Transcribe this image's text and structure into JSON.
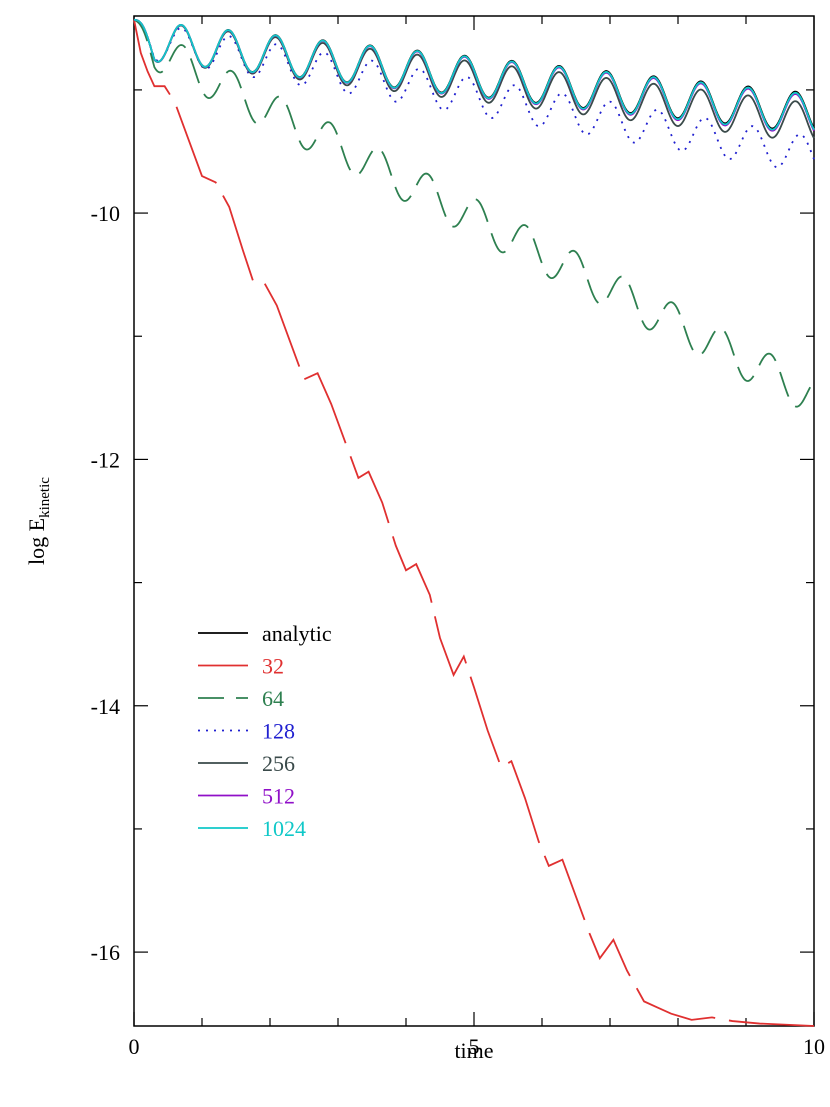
{
  "chart_data": {
    "type": "line",
    "title": "",
    "xlabel": "time",
    "ylabel": "log E",
    "ylabel_sub": "kinetic",
    "xlim": [
      0,
      10
    ],
    "ylim": [
      -16.6,
      -8.4
    ],
    "x_ticks": [
      0,
      5,
      10
    ],
    "y_ticks": [
      -10,
      -12,
      -14,
      -16
    ],
    "grid": false,
    "legend_position": "lower-left",
    "series": [
      {
        "name": "analytic",
        "color": "#000000",
        "dash": "solid",
        "start": -8.43,
        "slope": -0.06,
        "amp": 0.16,
        "period": 0.695
      },
      {
        "name": "32",
        "color": "#e03030",
        "dash": "long-dash",
        "points": [
          [
            0,
            -8.43
          ],
          [
            0.1,
            -8.7
          ],
          [
            0.2,
            -8.85
          ],
          [
            0.3,
            -8.97
          ],
          [
            0.45,
            -8.97
          ],
          [
            0.6,
            -9.1
          ],
          [
            0.8,
            -9.4
          ],
          [
            1.0,
            -9.7
          ],
          [
            1.2,
            -9.75
          ],
          [
            1.4,
            -9.95
          ],
          [
            1.6,
            -10.3
          ],
          [
            1.75,
            -10.55
          ],
          [
            1.9,
            -10.55
          ],
          [
            2.1,
            -10.75
          ],
          [
            2.3,
            -11.05
          ],
          [
            2.5,
            -11.35
          ],
          [
            2.7,
            -11.3
          ],
          [
            2.9,
            -11.55
          ],
          [
            3.1,
            -11.85
          ],
          [
            3.3,
            -12.15
          ],
          [
            3.45,
            -12.1
          ],
          [
            3.65,
            -12.35
          ],
          [
            3.85,
            -12.7
          ],
          [
            4.0,
            -12.9
          ],
          [
            4.15,
            -12.85
          ],
          [
            4.35,
            -13.1
          ],
          [
            4.5,
            -13.45
          ],
          [
            4.7,
            -13.75
          ],
          [
            4.85,
            -13.6
          ],
          [
            5.0,
            -13.85
          ],
          [
            5.2,
            -14.2
          ],
          [
            5.4,
            -14.5
          ],
          [
            5.55,
            -14.45
          ],
          [
            5.75,
            -14.75
          ],
          [
            5.95,
            -15.1
          ],
          [
            6.1,
            -15.3
          ],
          [
            6.3,
            -15.25
          ],
          [
            6.5,
            -15.55
          ],
          [
            6.7,
            -15.85
          ],
          [
            6.85,
            -16.05
          ],
          [
            7.05,
            -15.9
          ],
          [
            7.25,
            -16.15
          ],
          [
            7.5,
            -16.4
          ],
          [
            7.7,
            -16.45
          ],
          [
            7.9,
            -16.5
          ],
          [
            8.2,
            -16.55
          ],
          [
            8.5,
            -16.53
          ],
          [
            8.8,
            -16.56
          ],
          [
            9.2,
            -16.58
          ],
          [
            9.6,
            -16.59
          ],
          [
            10.0,
            -16.6
          ]
        ]
      },
      {
        "name": "64",
        "color": "#2e8050",
        "dash": "medium-dash",
        "start": -8.43,
        "slope": -0.29,
        "amp": 0.16,
        "period": 0.72
      },
      {
        "name": "128",
        "color": "#2020d0",
        "dash": "dotted",
        "start": -8.43,
        "slope": -0.095,
        "amp": 0.15,
        "period": 0.7
      },
      {
        "name": "256",
        "color": "#3a4a4a",
        "dash": "solid",
        "start": -8.43,
        "slope": -0.068,
        "amp": 0.16,
        "period": 0.695
      },
      {
        "name": "512",
        "color": "#9010c8",
        "dash": "solid",
        "start": -8.43,
        "slope": -0.062,
        "amp": 0.16,
        "period": 0.695
      },
      {
        "name": "1024",
        "color": "#10c8c8",
        "dash": "solid",
        "start": -8.43,
        "slope": -0.061,
        "amp": 0.16,
        "period": 0.695
      }
    ]
  }
}
